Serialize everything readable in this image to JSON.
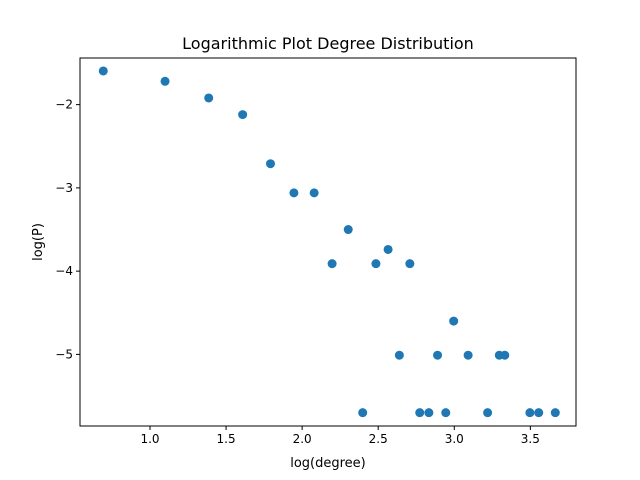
{
  "chart_data": {
    "type": "scatter",
    "title": "Logarithmic Plot Degree Distribution",
    "xlabel": "log(degree)",
    "ylabel": "log(P)",
    "xlim": [
      0.54,
      3.8
    ],
    "ylim": [
      -5.86,
      -1.44
    ],
    "xticks": [
      1.0,
      1.5,
      2.0,
      2.5,
      3.0,
      3.5
    ],
    "xtick_labels": [
      "1.0",
      "1.5",
      "2.0",
      "2.5",
      "3.0",
      "3.5"
    ],
    "yticks": [
      -5,
      -4,
      -3,
      -2
    ],
    "ytick_labels": [
      "−5",
      "−4",
      "−3",
      "−2"
    ],
    "grid": false,
    "marker_color": "#1f77b4",
    "points": [
      {
        "x": 0.693,
        "y": -1.596
      },
      {
        "x": 1.099,
        "y": -1.72
      },
      {
        "x": 1.386,
        "y": -1.92
      },
      {
        "x": 1.609,
        "y": -2.12
      },
      {
        "x": 1.792,
        "y": -2.71
      },
      {
        "x": 1.946,
        "y": -3.06
      },
      {
        "x": 2.079,
        "y": -3.06
      },
      {
        "x": 2.303,
        "y": -3.5
      },
      {
        "x": 2.197,
        "y": -3.91
      },
      {
        "x": 2.485,
        "y": -3.91
      },
      {
        "x": 2.565,
        "y": -3.74
      },
      {
        "x": 2.708,
        "y": -3.91
      },
      {
        "x": 2.996,
        "y": -4.6
      },
      {
        "x": 2.639,
        "y": -5.01
      },
      {
        "x": 2.89,
        "y": -5.01
      },
      {
        "x": 3.091,
        "y": -5.01
      },
      {
        "x": 3.296,
        "y": -5.01
      },
      {
        "x": 3.332,
        "y": -5.01
      },
      {
        "x": 2.398,
        "y": -5.7
      },
      {
        "x": 2.773,
        "y": -5.7
      },
      {
        "x": 2.833,
        "y": -5.7
      },
      {
        "x": 2.944,
        "y": -5.7
      },
      {
        "x": 3.219,
        "y": -5.7
      },
      {
        "x": 3.497,
        "y": -5.7
      },
      {
        "x": 3.555,
        "y": -5.7
      },
      {
        "x": 3.664,
        "y": -5.7
      }
    ]
  }
}
